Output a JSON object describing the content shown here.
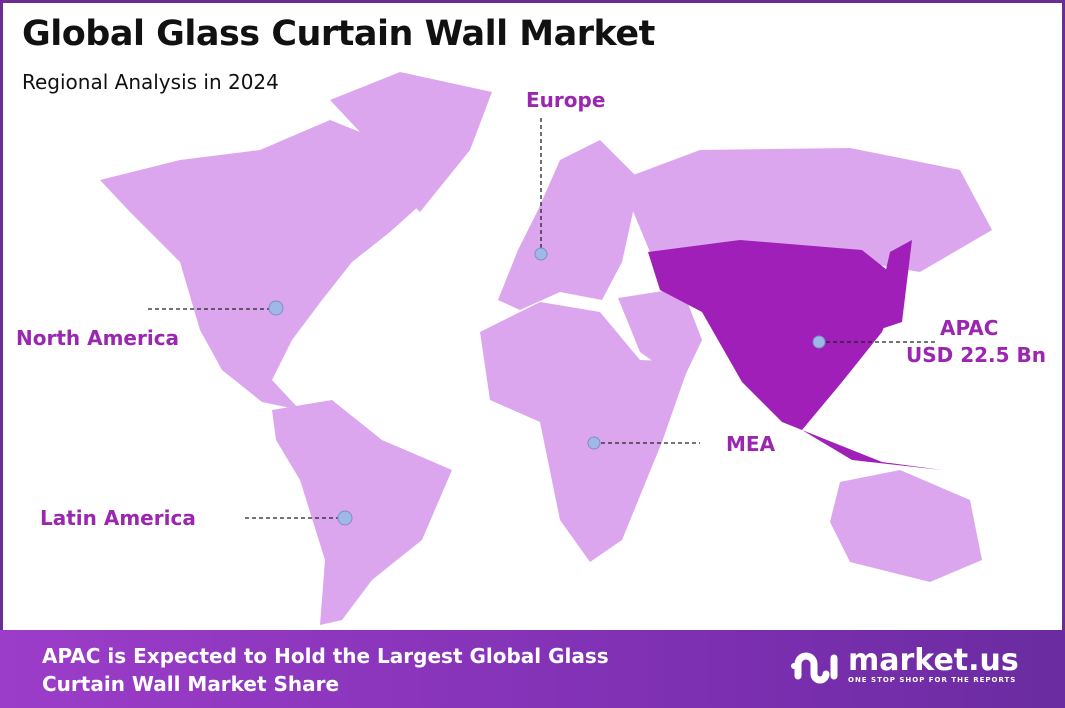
{
  "header": {
    "title": "Global Glass Curtain Wall Market",
    "subtitle": "Regional Analysis in 2024"
  },
  "colors": {
    "region": "#dba6ee",
    "highlight": "#a01fb8",
    "label": "#9b27b0",
    "marker": "#9fb8e8",
    "frame": "#6b2d8f"
  },
  "regions": [
    {
      "name": "North America",
      "highlighted": false
    },
    {
      "name": "Europe",
      "highlighted": false
    },
    {
      "name": "APAC",
      "value": "USD 22.5 Bn",
      "highlighted": true
    },
    {
      "name": "MEA",
      "highlighted": false
    },
    {
      "name": "Latin America",
      "highlighted": false
    }
  ],
  "banner": {
    "line1": "APAC is Expected to Hold the Largest Global Glass",
    "line2": "Curtain Wall Market Share"
  },
  "logo": {
    "name": "market.us",
    "tagline": "ONE STOP SHOP FOR THE REPORTS"
  }
}
